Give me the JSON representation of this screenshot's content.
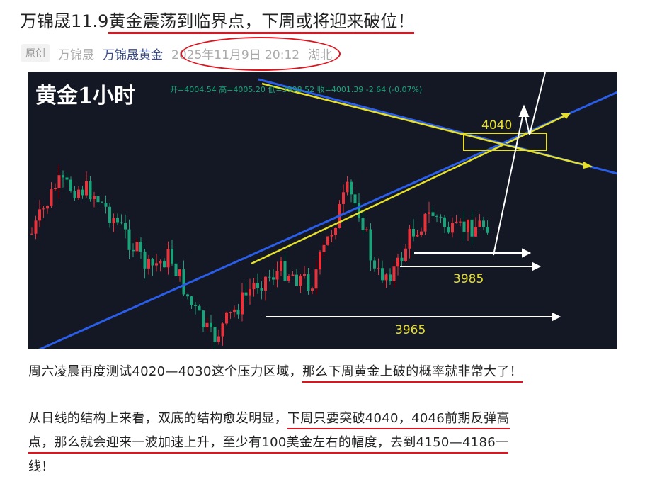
{
  "article": {
    "title_prefix": "万锦晟11.9",
    "title_highlight": "黄金震荡到临界点，下周或将迎来破位！",
    "badge": "原创",
    "author": "万锦晟",
    "account": "万锦晟黄金",
    "date": "2025年11月9日 20:12",
    "location": "湖北"
  },
  "chart_image": {
    "title": "黄金1小时",
    "ohlc": "开=4004.54 高=4005.20 低=3998.52 收=4001.39 -2.64 (-0.07%)",
    "labels": {
      "resistance": "4040",
      "support1": "3985",
      "support2": "3965"
    },
    "colors": {
      "up": "#e8323c",
      "down": "#1aa37a",
      "trend_blue": "#2a5de8",
      "trend_yellow": "#e6e02a"
    }
  },
  "paragraphs": {
    "p1_a": "周六凌晨再度测试4020—4030这个压力区域，",
    "p1_b": "那么下周黄金上破的概率就非常大了！",
    "p2_l1_a": "从日线的结构上来看，双底的结构愈发明显，",
    "p2_l1_b": "下周只要突破4040，4046前期反弹高",
    "p2_l2": "点，那么就会迎来一波加速上升，至少有100美金左右的幅度，去到4150—4186一",
    "p2_l3": "线！"
  }
}
